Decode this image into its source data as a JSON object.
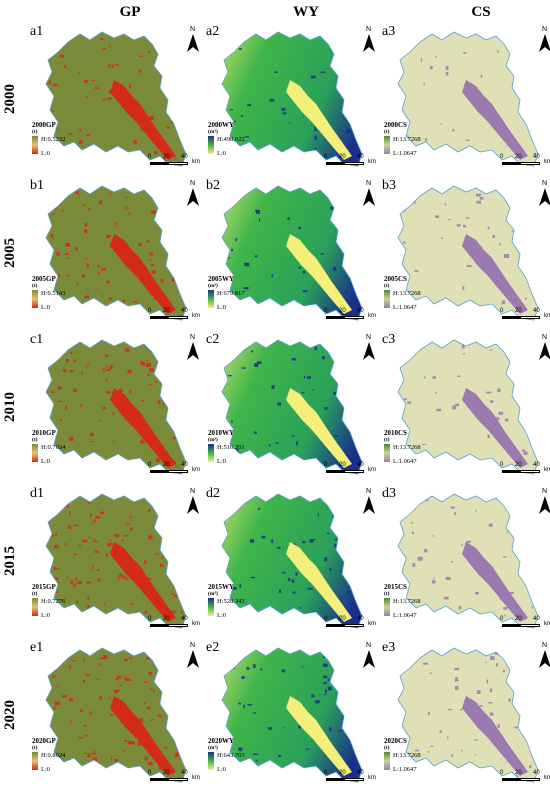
{
  "columns": [
    {
      "key": "gp",
      "label": "GP"
    },
    {
      "key": "wy",
      "label": "WY"
    },
    {
      "key": "cs",
      "label": "CS"
    }
  ],
  "rows": [
    {
      "year": "2000",
      "letter": "a",
      "gp": {
        "label": "a1",
        "title": "2000GP",
        "unit": "(t)",
        "high": "H:0.5232",
        "low": "L:0"
      },
      "wy": {
        "label": "a2",
        "title": "2000WY",
        "unit": "(m³)",
        "high": "H:498.022",
        "low": "L:0"
      },
      "cs": {
        "label": "a3",
        "title": "2000CS",
        "unit": "(t)",
        "high": "H:13.7268",
        "low": "L:1.0647"
      }
    },
    {
      "year": "2005",
      "letter": "b",
      "gp": {
        "label": "b1",
        "title": "2005GP",
        "unit": "(t)",
        "high": "H:0.5143",
        "low": "L:0"
      },
      "wy": {
        "label": "b2",
        "title": "2005WY",
        "unit": "(m³)",
        "high": "H:679.817",
        "low": "L:0"
      },
      "cs": {
        "label": "b3",
        "title": "2005CS",
        "unit": "(t)",
        "high": "H:13.7268",
        "low": "L:1.0647"
      }
    },
    {
      "year": "2010",
      "letter": "c",
      "gp": {
        "label": "c1",
        "title": "2010GP",
        "unit": "(t)",
        "high": "H:0.7034",
        "low": "L:0"
      },
      "wy": {
        "label": "c2",
        "title": "2010WY",
        "unit": "(m³)",
        "high": "H:516.261",
        "low": "L:0"
      },
      "cs": {
        "label": "c3",
        "title": "2010CS",
        "unit": "(t)",
        "high": "H:13.7268",
        "low": "L:1.0647"
      }
    },
    {
      "year": "2015",
      "letter": "d",
      "gp": {
        "label": "d1",
        "title": "2015GP",
        "unit": "(t)",
        "high": "H:0.7276",
        "low": "L:0"
      },
      "wy": {
        "label": "d2",
        "title": "2015WY",
        "unit": "(m³)",
        "high": "H:528.343",
        "low": "L:0"
      },
      "cs": {
        "label": "d3",
        "title": "2015CS",
        "unit": "(t)",
        "high": "H:13.7268",
        "low": "L:1.0647"
      }
    },
    {
      "year": "2020",
      "letter": "e",
      "gp": {
        "label": "e1",
        "title": "2020GP",
        "unit": "(t)",
        "high": "H:0.8024",
        "low": "L:0"
      },
      "wy": {
        "label": "e2",
        "title": "2020WY",
        "unit": "(m³)",
        "high": "H:643.703",
        "low": "L:0"
      },
      "cs": {
        "label": "e3",
        "title": "2020CS",
        "unit": "(t)",
        "high": "H:13.7268",
        "low": "L:1.0647"
      }
    }
  ],
  "scalebar": {
    "ticks": [
      "0",
      "20",
      "40"
    ],
    "unit": "km"
  },
  "north_label": "N",
  "colors": {
    "gp_base": "#7a8b3a",
    "gp_hot": "#d42a1a",
    "wy_low": "#f4ef7a",
    "wy_mid": "#3fb54a",
    "wy_high": "#1a2f8c",
    "cs_base": "#dfe0b6",
    "cs_low": "#9b7ab0",
    "outline": "#5aa0c8"
  }
}
